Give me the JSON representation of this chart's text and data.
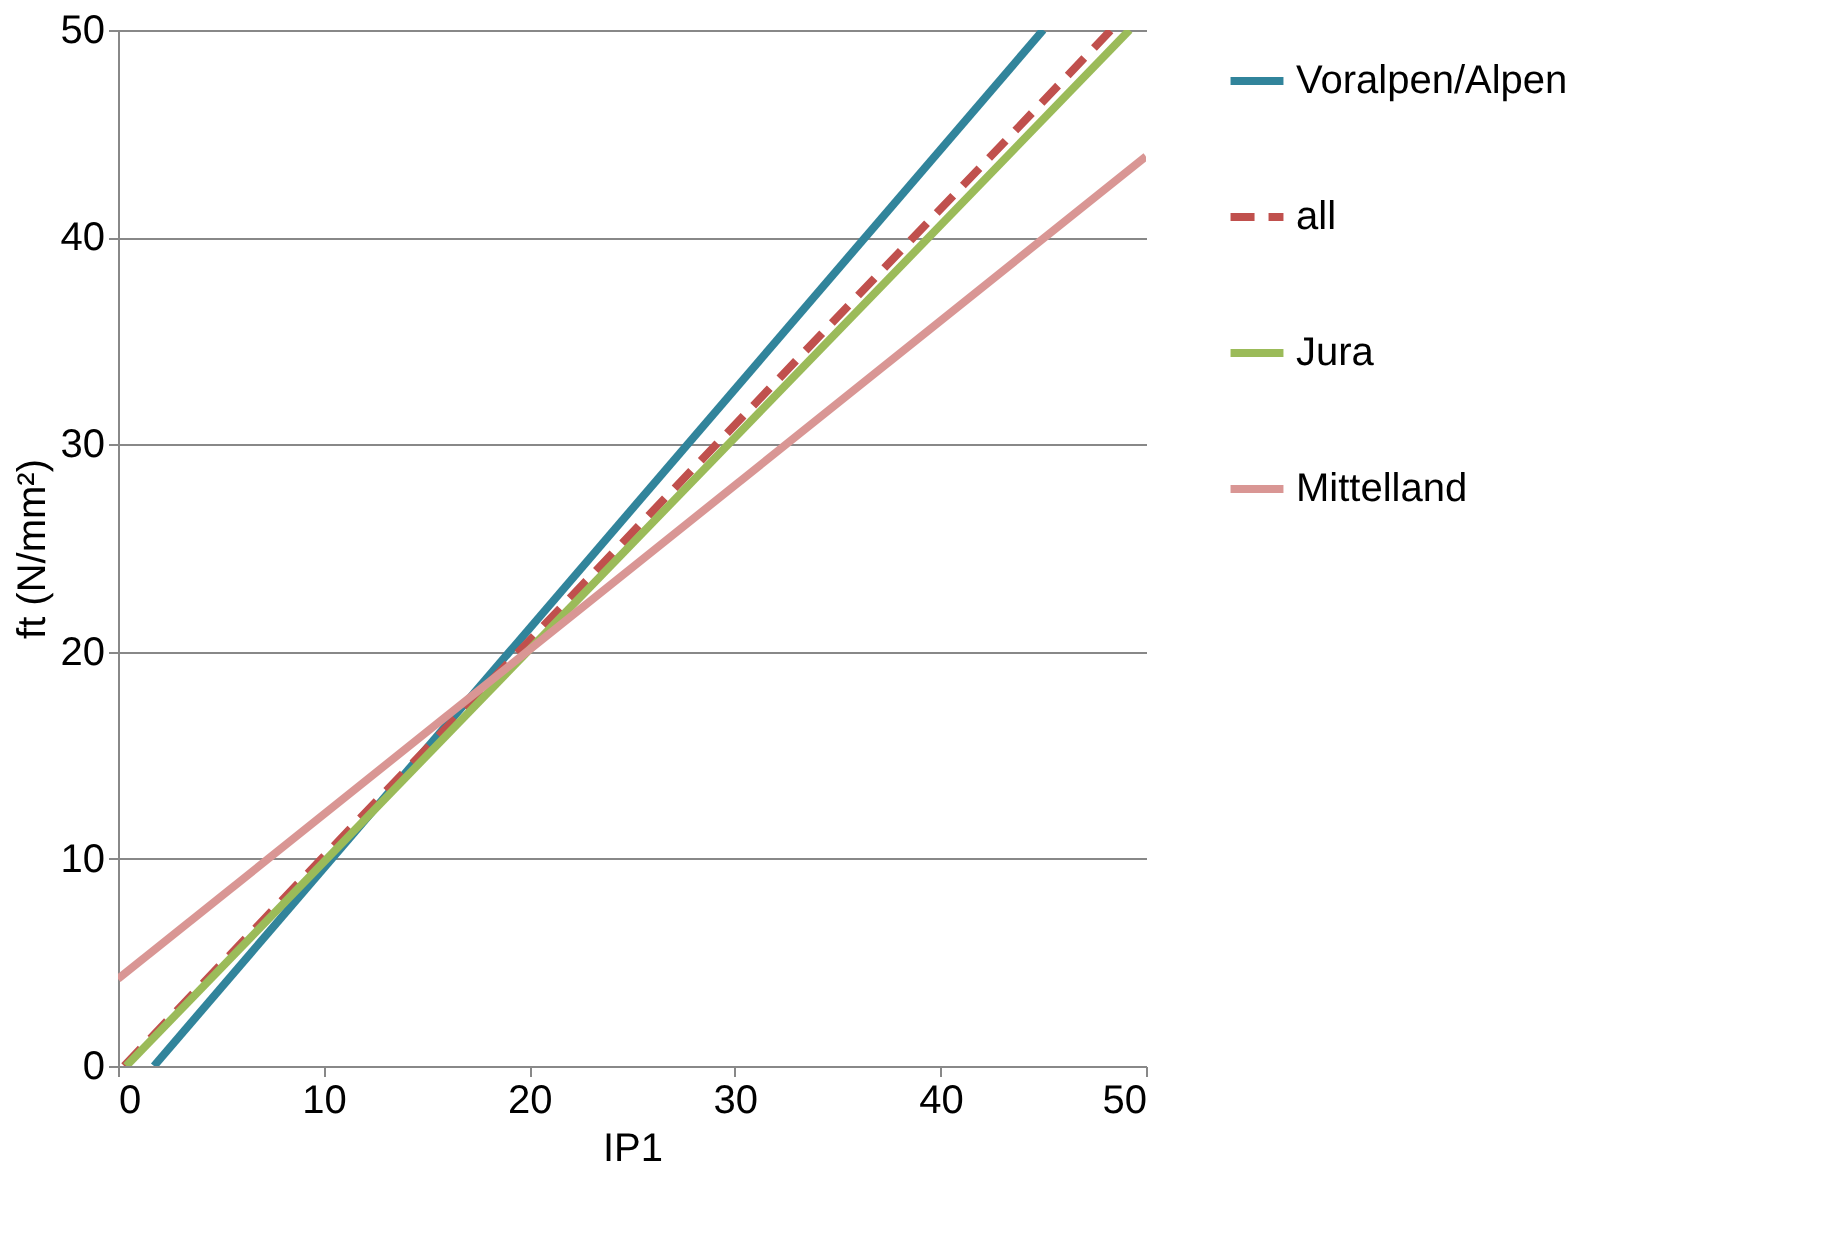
{
  "chart_data": {
    "type": "line",
    "xlabel": "IP1",
    "ylabel": "ft (N/mm²)",
    "xlim": [
      0,
      50
    ],
    "ylim": [
      0,
      50
    ],
    "xticks": [
      0,
      10,
      20,
      30,
      40,
      50
    ],
    "yticks": [
      0,
      10,
      20,
      30,
      40,
      50
    ],
    "grid": "y",
    "legend": "right",
    "marker": "none",
    "series": [
      {
        "name": "Voralpen/Alpen",
        "color": "#31849b",
        "x": [
          1.75,
          45
        ],
        "values": [
          0,
          50
        ],
        "line_style": "solid"
      },
      {
        "name": "all",
        "color": "#c0504d",
        "x": [
          0.3,
          48.3
        ],
        "values": [
          0,
          50
        ],
        "line_style": "dashed"
      },
      {
        "name": "Jura",
        "color": "#9bbb59",
        "x": [
          0.4,
          49.2
        ],
        "values": [
          0,
          50
        ],
        "line_style": "solid"
      },
      {
        "name": "Mittelland",
        "color": "#d99694",
        "x": [
          0,
          50
        ],
        "values": [
          4.2,
          43.9
        ],
        "line_style": "solid"
      }
    ]
  }
}
